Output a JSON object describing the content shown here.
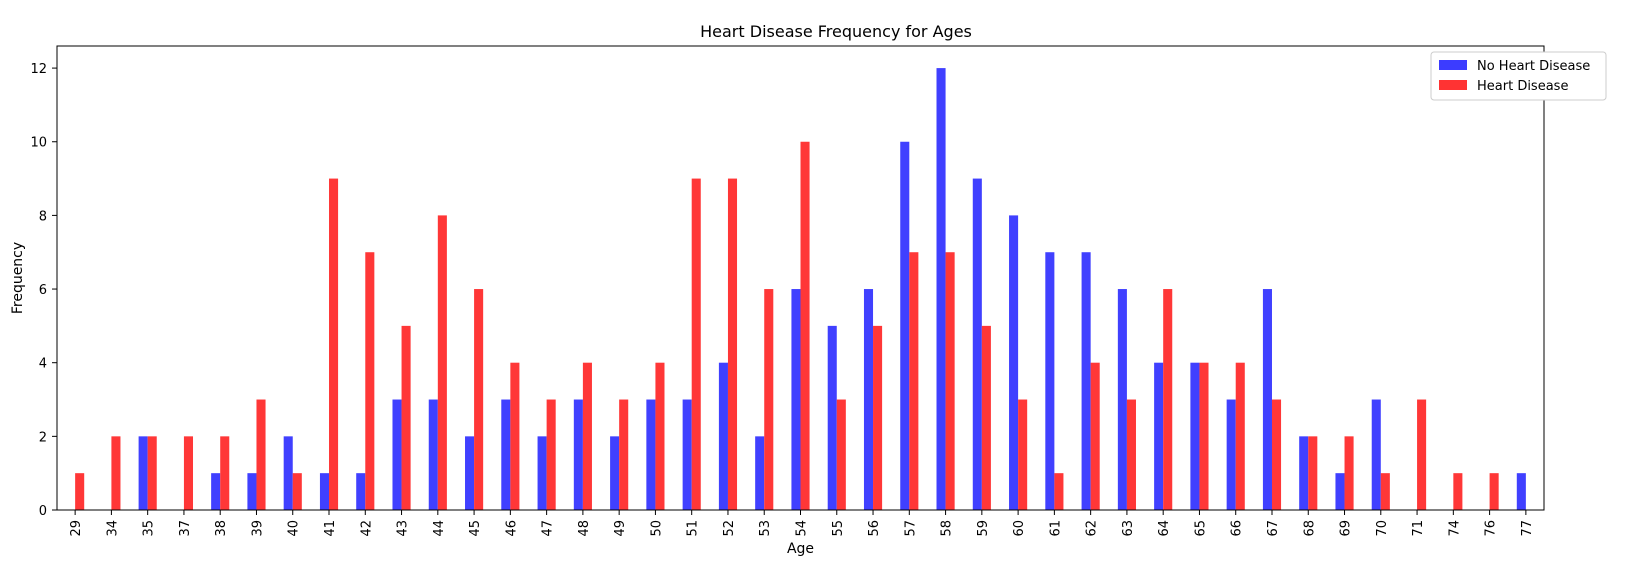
{
  "chart_data": {
    "type": "bar",
    "title": "Heart Disease Frequency for Ages",
    "xlabel": "Age",
    "ylabel": "Frequency",
    "ylim": [
      0,
      12.6
    ],
    "yticks": [
      0,
      2,
      4,
      6,
      8,
      10,
      12
    ],
    "grid": false,
    "legend_position": "top-right",
    "categories": [
      "29",
      "34",
      "35",
      "37",
      "38",
      "39",
      "40",
      "41",
      "42",
      "43",
      "44",
      "45",
      "46",
      "47",
      "48",
      "49",
      "50",
      "51",
      "52",
      "53",
      "54",
      "55",
      "56",
      "57",
      "58",
      "59",
      "60",
      "61",
      "62",
      "63",
      "64",
      "65",
      "66",
      "67",
      "68",
      "69",
      "70",
      "71",
      "74",
      "76",
      "77"
    ],
    "series": [
      {
        "name": "No Heart Disease",
        "color": "#3c3cff",
        "values": [
          0,
          0,
          2,
          0,
          1,
          1,
          2,
          1,
          1,
          3,
          3,
          2,
          3,
          2,
          3,
          2,
          3,
          3,
          4,
          2,
          6,
          5,
          6,
          10,
          12,
          9,
          8,
          7,
          7,
          6,
          4,
          4,
          3,
          6,
          2,
          1,
          3,
          0,
          0,
          0,
          1
        ]
      },
      {
        "name": "Heart Disease",
        "color": "#ff3333",
        "values": [
          1,
          2,
          2,
          2,
          2,
          3,
          1,
          9,
          7,
          5,
          8,
          6,
          4,
          3,
          4,
          3,
          4,
          9,
          9,
          6,
          10,
          3,
          5,
          7,
          7,
          5,
          3,
          1,
          4,
          3,
          6,
          4,
          4,
          3,
          2,
          2,
          1,
          3,
          1,
          1,
          0
        ]
      }
    ]
  }
}
